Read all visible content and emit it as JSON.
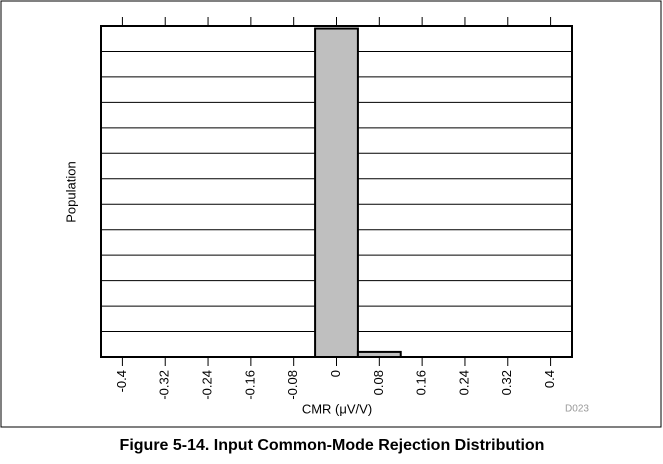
{
  "chart_data": {
    "type": "histogram",
    "caption": "Figure 5-14. Input Common-Mode Rejection Distribution",
    "xlabel": "CMR (μV/V)",
    "ylabel": "Population",
    "code": "D023",
    "bins": [
      -0.44,
      -0.36,
      -0.28,
      -0.2,
      -0.12,
      -0.04,
      0.04,
      0.12,
      0.2,
      0.28,
      0.36,
      0.44
    ],
    "values": [
      0,
      0,
      0,
      0,
      0,
      12.9,
      0.2,
      0,
      0,
      0,
      0
    ],
    "color": "#bfbfbf",
    "xlim": [
      -0.44,
      0.44
    ],
    "xticks": [
      -0.4,
      -0.32,
      -0.24,
      -0.16,
      -0.08,
      0,
      0.08,
      0.16,
      0.24,
      0.32,
      0.4
    ],
    "ylim": [
      0,
      13
    ],
    "yticks": [
      0,
      1,
      2,
      3,
      4,
      5,
      6,
      7,
      8,
      9,
      10,
      11,
      12,
      13
    ],
    "grid": true
  }
}
